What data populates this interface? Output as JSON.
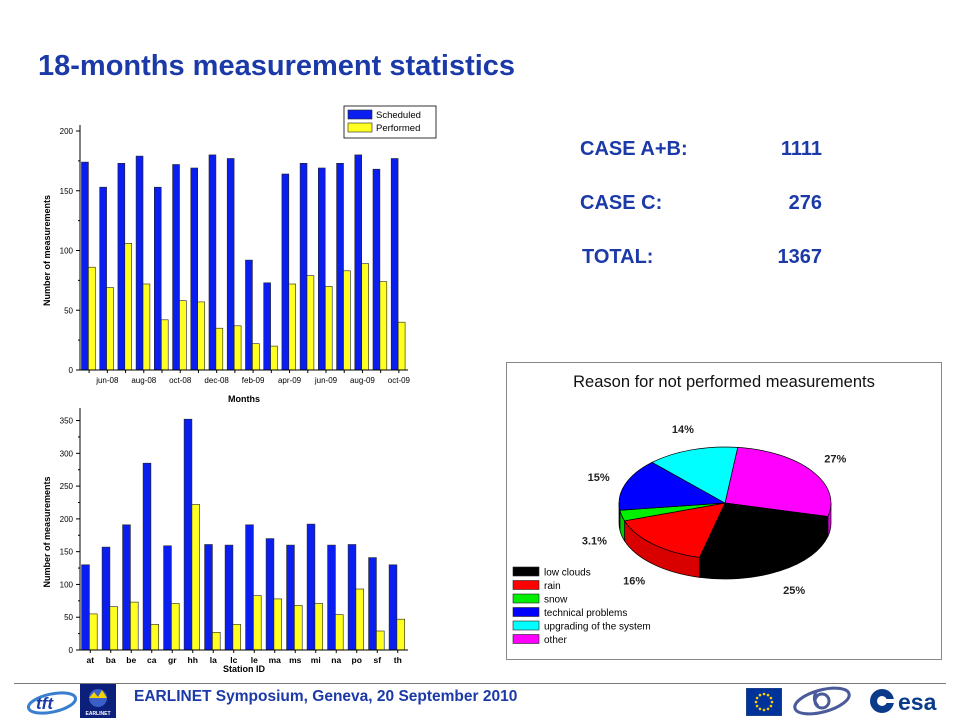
{
  "slide": {
    "title": "18-months measurement statistics",
    "footer": "EARLINET Symposium, Geneva, 20 September 2010"
  },
  "stats": [
    {
      "label": "CASE A+B:",
      "value": "1111"
    },
    {
      "label": "CASE C:",
      "value": "276"
    },
    {
      "label": "TOTAL:",
      "value": "1367"
    }
  ],
  "logos": {
    "left_1": "tft",
    "left_2": "EARLINET",
    "right_3": "esa"
  },
  "chart_data": [
    {
      "type": "bar",
      "xlabel": "Months",
      "ylabel": "Number of measurements",
      "ylim": [
        0,
        200
      ],
      "yticks": [
        0,
        50,
        100,
        150,
        200
      ],
      "xtick_labels": [
        "jun-08",
        "aug-08",
        "oct-08",
        "dec-08",
        "feb-09",
        "apr-09",
        "jun-09",
        "aug-09",
        "oct-09"
      ],
      "categories": [
        "may-08",
        "jun-08",
        "jul-08",
        "aug-08",
        "sep-08",
        "oct-08",
        "nov-08",
        "dec-08",
        "jan-09",
        "feb-09",
        "mar-09",
        "apr-09",
        "may-09",
        "jun-09",
        "jul-09",
        "aug-09",
        "sep-09",
        "oct-09"
      ],
      "legend_position": "top-right",
      "grid": false,
      "series": [
        {
          "name": "Scheduled",
          "color": "#0a1ef0",
          "values": [
            174,
            153,
            173,
            179,
            153,
            172,
            169,
            180,
            177,
            92,
            73,
            164,
            173,
            169,
            173,
            180,
            168,
            177
          ]
        },
        {
          "name": "Performed",
          "color": "#ffff22",
          "values": [
            86,
            69,
            106,
            72,
            42,
            58,
            57,
            35,
            37,
            22,
            20,
            72,
            79,
            70,
            83,
            89,
            74,
            40
          ]
        }
      ]
    },
    {
      "type": "bar",
      "xlabel": "Station ID",
      "ylabel": "Number of measurements",
      "ylim": [
        0,
        360
      ],
      "yticks": [
        0,
        50,
        100,
        150,
        200,
        250,
        300,
        350
      ],
      "categories": [
        "at",
        "ba",
        "be",
        "ca",
        "gr",
        "hh",
        "la",
        "lc",
        "le",
        "ma",
        "ms",
        "mi",
        "na",
        "po",
        "sf",
        "th"
      ],
      "grid": false,
      "series": [
        {
          "color": "#0a1ef0",
          "values": [
            130,
            157,
            191,
            285,
            159,
            352,
            161,
            160,
            191,
            170,
            160,
            192,
            160,
            161,
            141,
            130
          ]
        },
        {
          "color": "#ffff22",
          "values": [
            55,
            66,
            73,
            39,
            71,
            222,
            27,
            39,
            83,
            78,
            68,
            71,
            54,
            93,
            29,
            47
          ]
        }
      ]
    },
    {
      "type": "pie",
      "title": "Reason for not performed measurements",
      "legend_position": "bottom-left",
      "slices": [
        {
          "label": "low clouds",
          "value": 25,
          "display": "25%",
          "color": "#000000"
        },
        {
          "label": "rain",
          "value": 16,
          "display": "16%",
          "color": "#ff0000"
        },
        {
          "label": "snow",
          "value": 3.1,
          "display": "3.1%",
          "color": "#00ee00"
        },
        {
          "label": "technical problems",
          "value": 15,
          "display": "15%",
          "color": "#0000ff"
        },
        {
          "label": "upgrading of the system",
          "value": 14,
          "display": "14%",
          "color": "#00ffff"
        },
        {
          "label": "other",
          "value": 27,
          "display": "27%",
          "color": "#ff00ff"
        }
      ]
    }
  ]
}
